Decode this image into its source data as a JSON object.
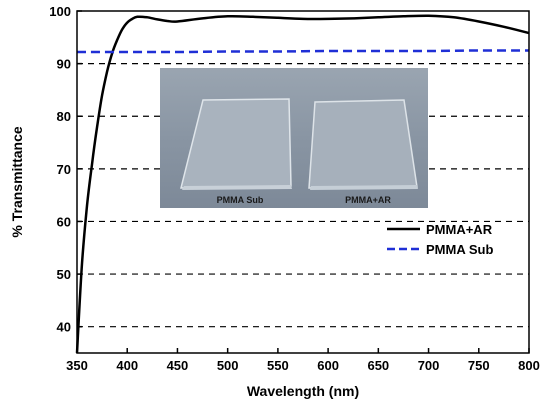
{
  "chart_data": {
    "type": "line",
    "xlabel": "Wavelength (nm)",
    "ylabel": "% Transmittance",
    "xlim": [
      350,
      800
    ],
    "ylim": [
      35,
      100
    ],
    "x_ticks": [
      350,
      400,
      450,
      500,
      550,
      600,
      650,
      700,
      750,
      800
    ],
    "y_ticks": [
      40,
      50,
      60,
      70,
      80,
      90,
      100
    ],
    "grid": "horizontal dashed",
    "legend_position": "right",
    "series": [
      {
        "name": "PMMA+AR",
        "style": "solid",
        "color": "#000000",
        "x": [
          350,
          355,
          360,
          365,
          370,
          375,
          380,
          385,
          390,
          395,
          400,
          405,
          410,
          420,
          430,
          440,
          450,
          475,
          500,
          525,
          550,
          575,
          600,
          625,
          650,
          675,
          700,
          725,
          750,
          775,
          800
        ],
        "y": [
          35,
          52,
          63,
          71,
          78,
          84,
          88.5,
          92,
          94.5,
          96.5,
          97.8,
          98.5,
          98.9,
          98.8,
          98.4,
          98.1,
          98.0,
          98.6,
          99.0,
          98.9,
          98.7,
          98.5,
          98.5,
          98.6,
          98.8,
          99.0,
          99.1,
          98.8,
          98.0,
          97.0,
          95.8
        ]
      },
      {
        "name": "PMMA Sub",
        "style": "dashed",
        "color": "#1f2fd6",
        "x": [
          350,
          400,
          450,
          500,
          550,
          600,
          650,
          700,
          750,
          800
        ],
        "y": [
          92.2,
          92.2,
          92.2,
          92.3,
          92.3,
          92.4,
          92.4,
          92.4,
          92.5,
          92.5
        ]
      }
    ]
  },
  "inset_photo": {
    "left_label": "PMMA Sub",
    "right_label": "PMMA+AR"
  }
}
